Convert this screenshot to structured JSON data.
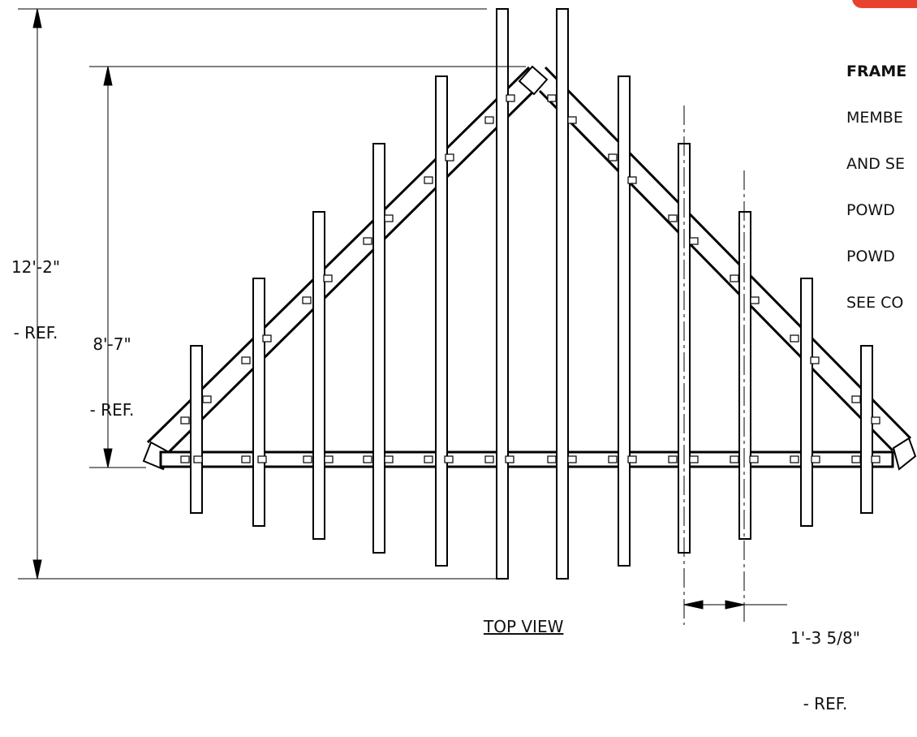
{
  "dimensions": {
    "overall_height": {
      "value": "12'-2\"",
      "suffix": "- REF."
    },
    "frame_height": {
      "value": "8'-7\"",
      "suffix": "- REF."
    },
    "post_spacing": {
      "value": "1'-3 5/8\"",
      "suffix": "- REF."
    }
  },
  "notes": {
    "title": "FRAME",
    "lines": [
      "MEMBE",
      "AND SE",
      "POWD",
      "POWD",
      "SEE CO"
    ]
  },
  "view_title": "TOP VIEW",
  "colors": {
    "line": "#000000",
    "badge": "#e8412f",
    "background": "#ffffff"
  }
}
